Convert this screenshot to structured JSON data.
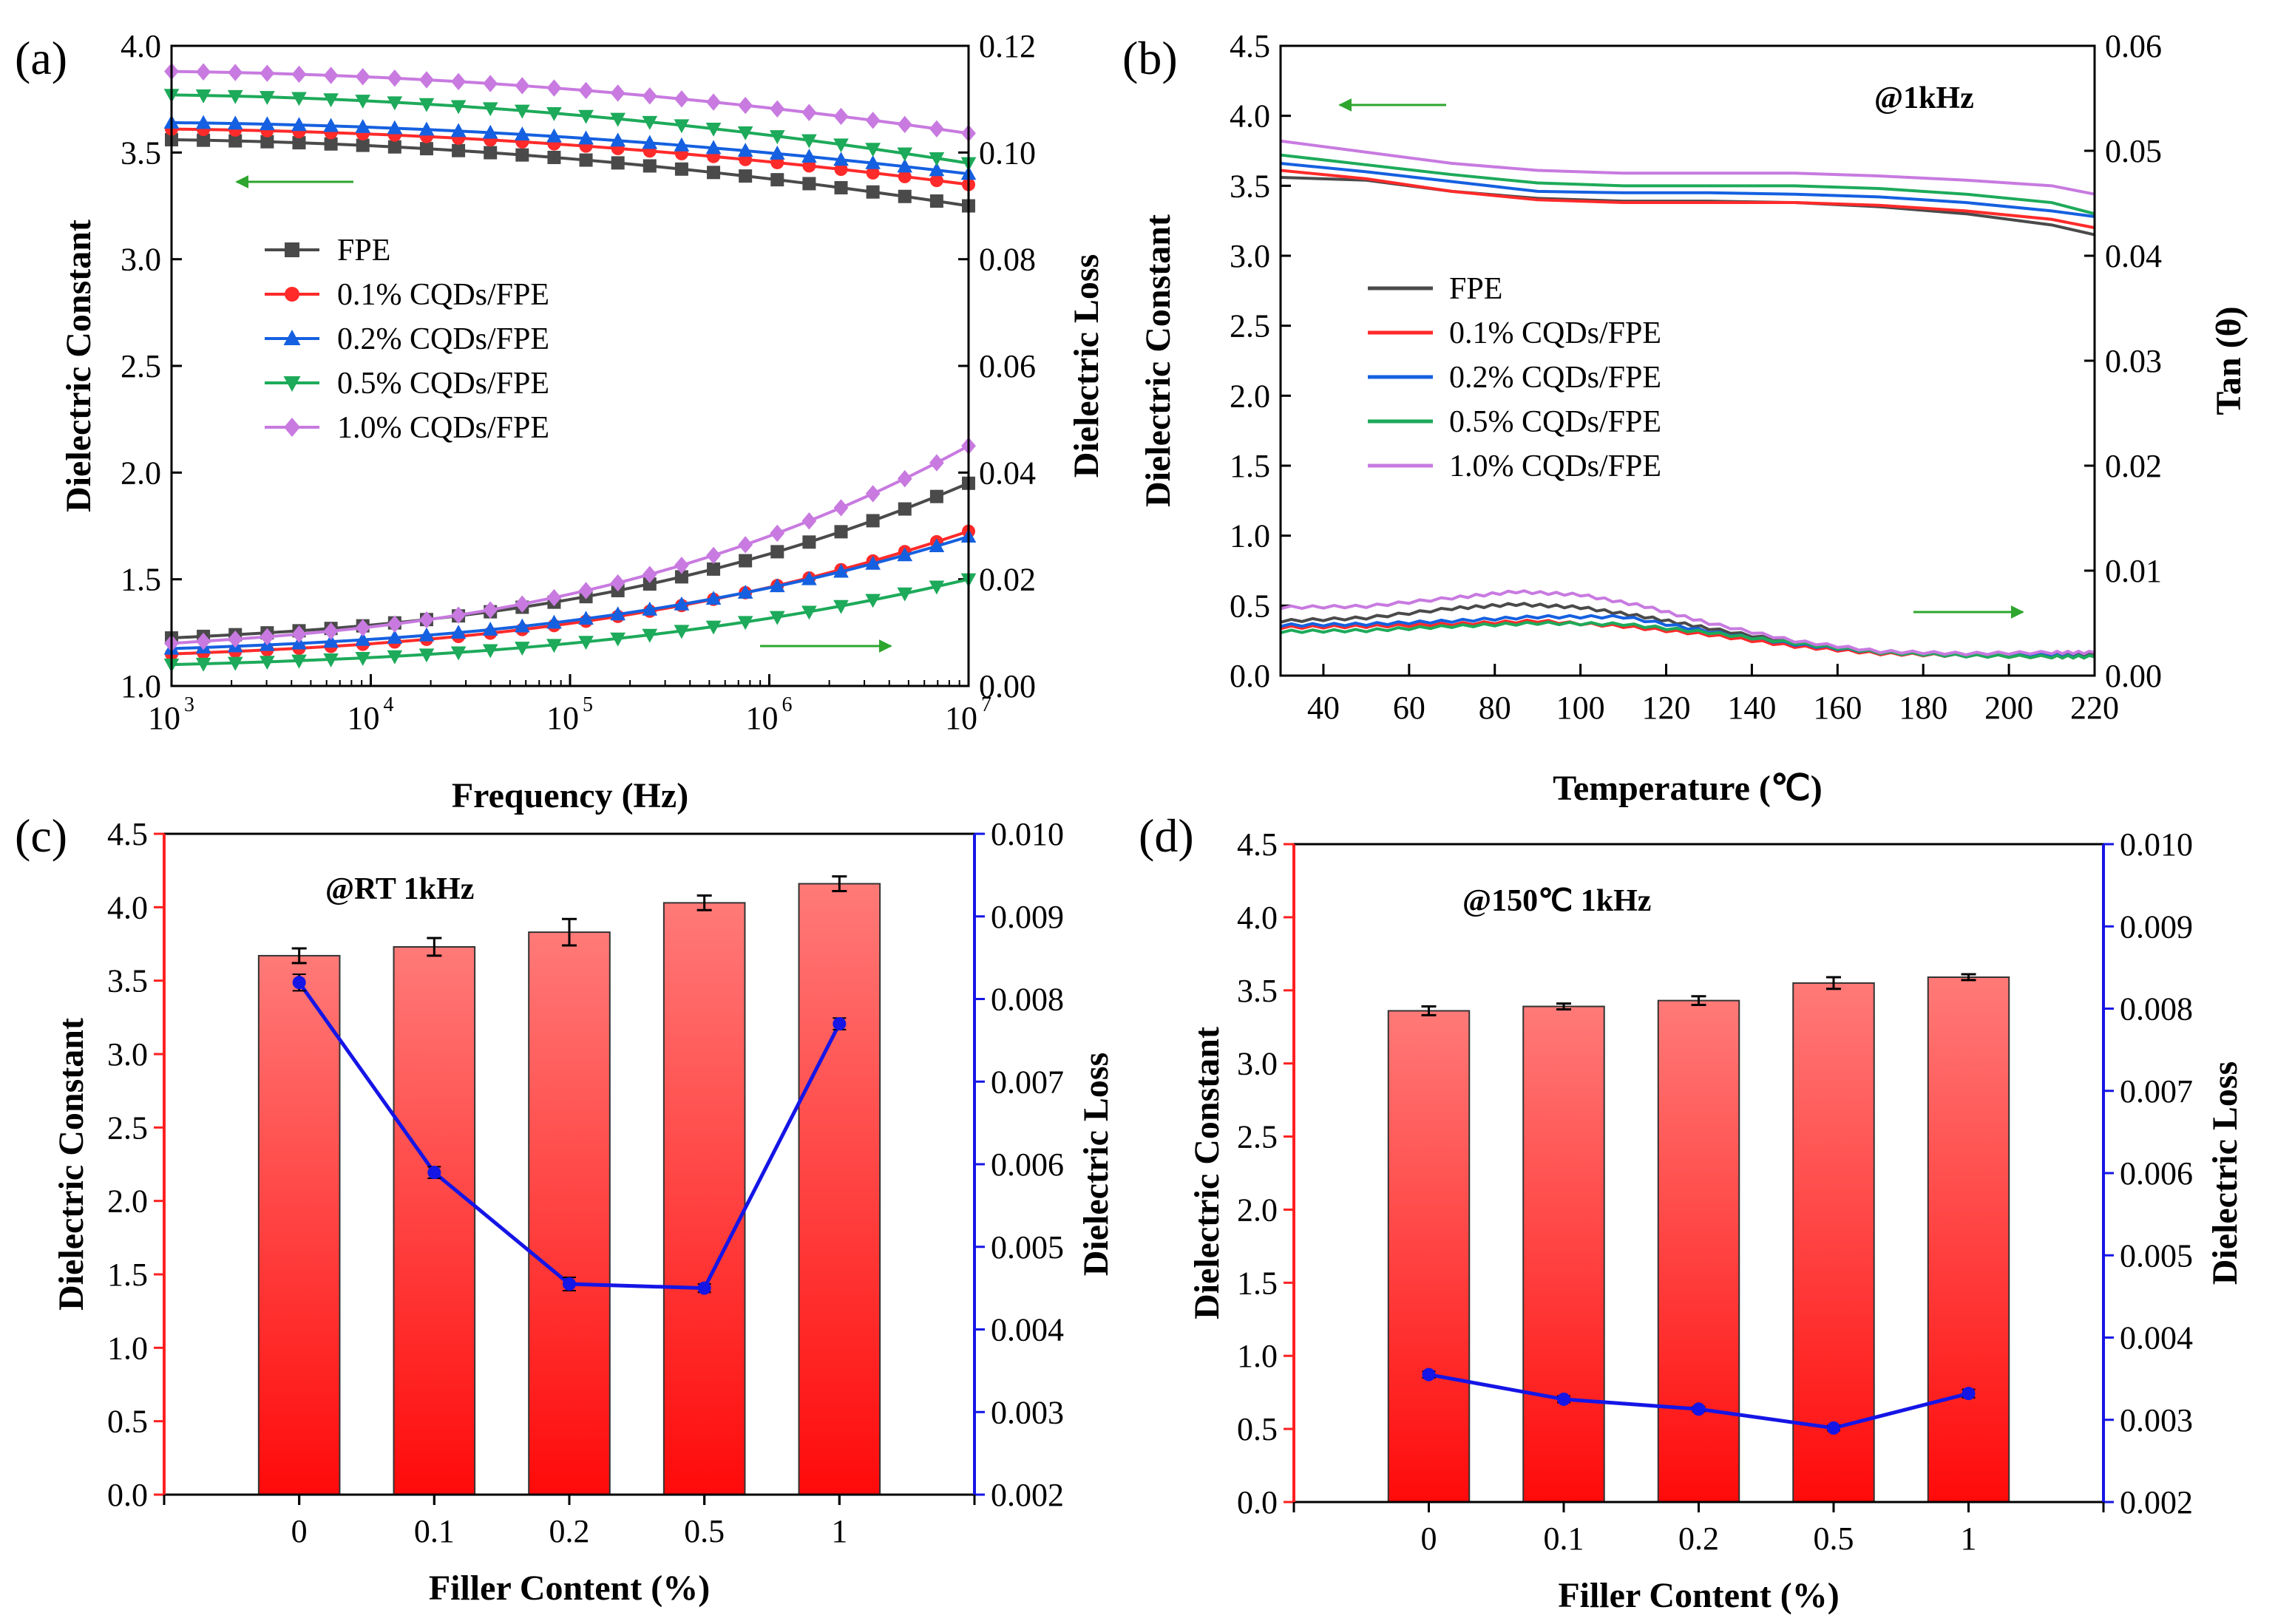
{
  "chart_data": [
    {
      "id": "a",
      "type": "line",
      "panel_label": "(a)",
      "xlabel": "Frequency (Hz)",
      "ylabel": "Dielectric Constant",
      "y2label": "Dielectric Loss",
      "xscale": "log",
      "xlim": [
        1000,
        10000000
      ],
      "ylim": [
        1.0,
        4.0
      ],
      "y2lim": [
        0.0,
        0.12
      ],
      "x_ticks": [
        {
          "base": "10",
          "exp": "3",
          "value": 1000
        },
        {
          "base": "10",
          "exp": "4",
          "value": 10000
        },
        {
          "base": "10",
          "exp": "5",
          "value": 100000
        },
        {
          "base": "10",
          "exp": "6",
          "value": 1000000
        },
        {
          "base": "10",
          "exp": "7",
          "value": 10000000
        }
      ],
      "y_ticks": [
        "1.0",
        "1.5",
        "2.0",
        "2.5",
        "3.0",
        "3.5",
        "4.0"
      ],
      "y2_ticks": [
        "0.00",
        "0.02",
        "0.04",
        "0.06",
        "0.08",
        "0.10",
        "0.12"
      ],
      "legend": [
        "FPE",
        "0.1% CQDs/FPE",
        "0.2% CQDs/FPE",
        "0.5% CQDs/FPE",
        "1.0% CQDs/FPE"
      ],
      "legend_position": "left-middle",
      "series": [
        {
          "name": "FPE",
          "color": "#4a4a4a",
          "marker": "square",
          "axis": "left",
          "constant_start": 3.56,
          "constant_end": 3.25,
          "loss_start": 0.009,
          "loss_end": 0.038
        },
        {
          "name": "0.1% CQDs/FPE",
          "color": "#ff2a2a",
          "marker": "circle",
          "axis": "left",
          "constant_start": 3.61,
          "constant_end": 3.35,
          "loss_start": 0.006,
          "loss_end": 0.029
        },
        {
          "name": "0.2% CQDs/FPE",
          "color": "#1560e0",
          "marker": "triangle-up",
          "axis": "left",
          "constant_start": 3.64,
          "constant_end": 3.4,
          "loss_start": 0.007,
          "loss_end": 0.028
        },
        {
          "name": "0.5% CQDs/FPE",
          "color": "#1daa5a",
          "marker": "triangle-down",
          "axis": "left",
          "constant_start": 3.77,
          "constant_end": 3.45,
          "loss_start": 0.004,
          "loss_end": 0.02
        },
        {
          "name": "1.0% CQDs/FPE",
          "color": "#c87ae0",
          "marker": "diamond",
          "axis": "left",
          "constant_start": 3.88,
          "constant_end": 3.59,
          "loss_start": 0.008,
          "loss_end": 0.045
        }
      ],
      "arrows": [
        {
          "direction": "left",
          "axis": "left"
        },
        {
          "direction": "right",
          "axis": "right"
        }
      ]
    },
    {
      "id": "b",
      "type": "line",
      "panel_label": "(b)",
      "annotation": "@1kHz",
      "xlabel": "Temperature (℃)",
      "ylabel": "Dielectric Constant",
      "y2label": "Tan (θ)",
      "xlim": [
        30,
        220
      ],
      "ylim": [
        0.0,
        4.5
      ],
      "y2lim": [
        0.0,
        0.06
      ],
      "x_ticks": [
        "40",
        "60",
        "80",
        "100",
        "120",
        "140",
        "160",
        "180",
        "200",
        "220"
      ],
      "y_ticks": [
        "0.0",
        "0.5",
        "1.0",
        "1.5",
        "2.0",
        "2.5",
        "3.0",
        "3.5",
        "4.0",
        "4.5"
      ],
      "y2_ticks": [
        "0.00",
        "0.01",
        "0.02",
        "0.03",
        "0.04",
        "0.05",
        "0.06"
      ],
      "legend": [
        "FPE",
        "0.1% CQDs/FPE",
        "0.2% CQDs/FPE",
        "0.5% CQDs/FPE",
        "1.0% CQDs/FPE"
      ],
      "legend_position": "left-middle",
      "series": [
        {
          "name": "FPE",
          "color": "#4a4a4a",
          "constant": [
            [
              30,
              3.56
            ],
            [
              50,
              3.54
            ],
            [
              70,
              3.46
            ],
            [
              90,
              3.41
            ],
            [
              110,
              3.39
            ],
            [
              130,
              3.39
            ],
            [
              150,
              3.38
            ],
            [
              170,
              3.35
            ],
            [
              190,
              3.3
            ],
            [
              210,
              3.22
            ],
            [
              220,
              3.15
            ]
          ],
          "loss": [
            [
              30,
              0.0052
            ],
            [
              50,
              0.0055
            ],
            [
              70,
              0.0064
            ],
            [
              85,
              0.0068
            ],
            [
              100,
              0.0065
            ],
            [
              115,
              0.0056
            ],
            [
              130,
              0.0045
            ],
            [
              150,
              0.0031
            ],
            [
              170,
              0.0022
            ],
            [
              190,
              0.002
            ],
            [
              210,
              0.0021
            ],
            [
              220,
              0.0021
            ]
          ]
        },
        {
          "name": "0.1% CQDs/FPE",
          "color": "#ff2a2a",
          "constant": [
            [
              30,
              3.61
            ],
            [
              50,
              3.55
            ],
            [
              70,
              3.46
            ],
            [
              90,
              3.4
            ],
            [
              110,
              3.38
            ],
            [
              130,
              3.38
            ],
            [
              150,
              3.38
            ],
            [
              170,
              3.36
            ],
            [
              190,
              3.32
            ],
            [
              210,
              3.26
            ],
            [
              220,
              3.2
            ]
          ],
          "loss": [
            [
              30,
              0.0046
            ],
            [
              50,
              0.0047
            ],
            [
              70,
              0.0049
            ],
            [
              90,
              0.0052
            ],
            [
              110,
              0.0047
            ],
            [
              130,
              0.0039
            ],
            [
              150,
              0.0028
            ],
            [
              170,
              0.0021
            ],
            [
              190,
              0.0019
            ],
            [
              210,
              0.0018
            ],
            [
              220,
              0.0018
            ]
          ]
        },
        {
          "name": "0.2% CQDs/FPE",
          "color": "#1560e0",
          "constant": [
            [
              30,
              3.66
            ],
            [
              50,
              3.6
            ],
            [
              70,
              3.53
            ],
            [
              90,
              3.46
            ],
            [
              110,
              3.45
            ],
            [
              130,
              3.45
            ],
            [
              150,
              3.44
            ],
            [
              170,
              3.42
            ],
            [
              190,
              3.38
            ],
            [
              210,
              3.32
            ],
            [
              220,
              3.28
            ]
          ],
          "loss": [
            [
              30,
              0.0048
            ],
            [
              50,
              0.0049
            ],
            [
              70,
              0.0052
            ],
            [
              90,
              0.0056
            ],
            [
              110,
              0.0056
            ],
            [
              130,
              0.0042
            ],
            [
              150,
              0.003
            ],
            [
              170,
              0.0022
            ],
            [
              190,
              0.0019
            ],
            [
              210,
              0.0019
            ],
            [
              220,
              0.0018
            ]
          ]
        },
        {
          "name": "0.5% CQDs/FPE",
          "color": "#1daa5a",
          "constant": [
            [
              30,
              3.72
            ],
            [
              50,
              3.65
            ],
            [
              70,
              3.58
            ],
            [
              90,
              3.52
            ],
            [
              110,
              3.5
            ],
            [
              130,
              3.5
            ],
            [
              150,
              3.5
            ],
            [
              170,
              3.48
            ],
            [
              190,
              3.44
            ],
            [
              210,
              3.38
            ],
            [
              220,
              3.3
            ]
          ],
          "loss": [
            [
              30,
              0.0042
            ],
            [
              50,
              0.0043
            ],
            [
              70,
              0.0047
            ],
            [
              90,
              0.005
            ],
            [
              110,
              0.0049
            ],
            [
              130,
              0.0041
            ],
            [
              150,
              0.0031
            ],
            [
              170,
              0.0022
            ],
            [
              190,
              0.0019
            ],
            [
              210,
              0.0018
            ],
            [
              220,
              0.0018
            ]
          ]
        },
        {
          "name": "1.0% CQDs/FPE",
          "color": "#c87ae0",
          "constant": [
            [
              30,
              3.82
            ],
            [
              50,
              3.74
            ],
            [
              70,
              3.66
            ],
            [
              90,
              3.61
            ],
            [
              110,
              3.59
            ],
            [
              130,
              3.59
            ],
            [
              150,
              3.59
            ],
            [
              170,
              3.57
            ],
            [
              190,
              3.54
            ],
            [
              210,
              3.5
            ],
            [
              220,
              3.44
            ]
          ],
          "loss": [
            [
              30,
              0.0065
            ],
            [
              50,
              0.0066
            ],
            [
              70,
              0.0074
            ],
            [
              85,
              0.008
            ],
            [
              100,
              0.0077
            ],
            [
              115,
              0.0066
            ],
            [
              130,
              0.005
            ],
            [
              150,
              0.0033
            ],
            [
              170,
              0.0023
            ],
            [
              190,
              0.0021
            ],
            [
              210,
              0.0022
            ],
            [
              220,
              0.0022
            ]
          ]
        }
      ],
      "arrows": [
        {
          "direction": "left",
          "axis": "left"
        },
        {
          "direction": "right",
          "axis": "right"
        }
      ]
    },
    {
      "id": "c",
      "type": "bar",
      "panel_label": "(c)",
      "annotation": "@RT 1kHz",
      "xlabel": "Filler Content (%)",
      "ylabel": "Dielectric Constant",
      "y2label": "Dielectric Loss",
      "categories": [
        "0",
        "0.1",
        "0.2",
        "0.5",
        "1"
      ],
      "ylim": [
        0.0,
        4.5
      ],
      "y2lim": [
        0.002,
        0.01
      ],
      "y_ticks": [
        "0.0",
        "0.5",
        "1.0",
        "1.5",
        "2.0",
        "2.5",
        "3.0",
        "3.5",
        "4.0",
        "4.5"
      ],
      "y2_ticks": [
        "0.002",
        "0.003",
        "0.004",
        "0.005",
        "0.006",
        "0.007",
        "0.008",
        "0.009",
        "0.010"
      ],
      "bar_values": [
        3.67,
        3.73,
        3.83,
        4.03,
        4.16
      ],
      "bar_errors": [
        0.05,
        0.06,
        0.09,
        0.05,
        0.05
      ],
      "loss_values": [
        0.0082,
        0.0059,
        0.00455,
        0.0045,
        0.0077
      ],
      "loss_errors": [
        0.0001,
        7e-05,
        8e-05,
        5e-05,
        7e-05
      ],
      "bar_color": "#ff3030",
      "line_color": "#1515e6"
    },
    {
      "id": "d",
      "type": "bar",
      "panel_label": "(d)",
      "annotation": "@150℃ 1kHz",
      "xlabel": "Filler Content (%)",
      "ylabel": "Dielectric Constant",
      "y2label": "Dielectric Loss",
      "categories": [
        "0",
        "0.1",
        "0.2",
        "0.5",
        "1"
      ],
      "ylim": [
        0.0,
        4.5
      ],
      "y2lim": [
        0.002,
        0.01
      ],
      "y_ticks": [
        "0.0",
        "0.5",
        "1.0",
        "1.5",
        "2.0",
        "2.5",
        "3.0",
        "3.5",
        "4.0",
        "4.5"
      ],
      "y2_ticks": [
        "0.002",
        "0.003",
        "0.004",
        "0.005",
        "0.006",
        "0.007",
        "0.008",
        "0.009",
        "0.010"
      ],
      "bar_values": [
        3.36,
        3.39,
        3.43,
        3.55,
        3.59
      ],
      "bar_errors": [
        0.03,
        0.02,
        0.03,
        0.04,
        0.02
      ],
      "loss_values": [
        0.00355,
        0.00325,
        0.00313,
        0.0029,
        0.00332
      ],
      "loss_errors": [
        4e-05,
        4e-05,
        3e-05,
        3e-05,
        5e-05
      ],
      "bar_color": "#ff3030",
      "line_color": "#1515e6"
    }
  ]
}
